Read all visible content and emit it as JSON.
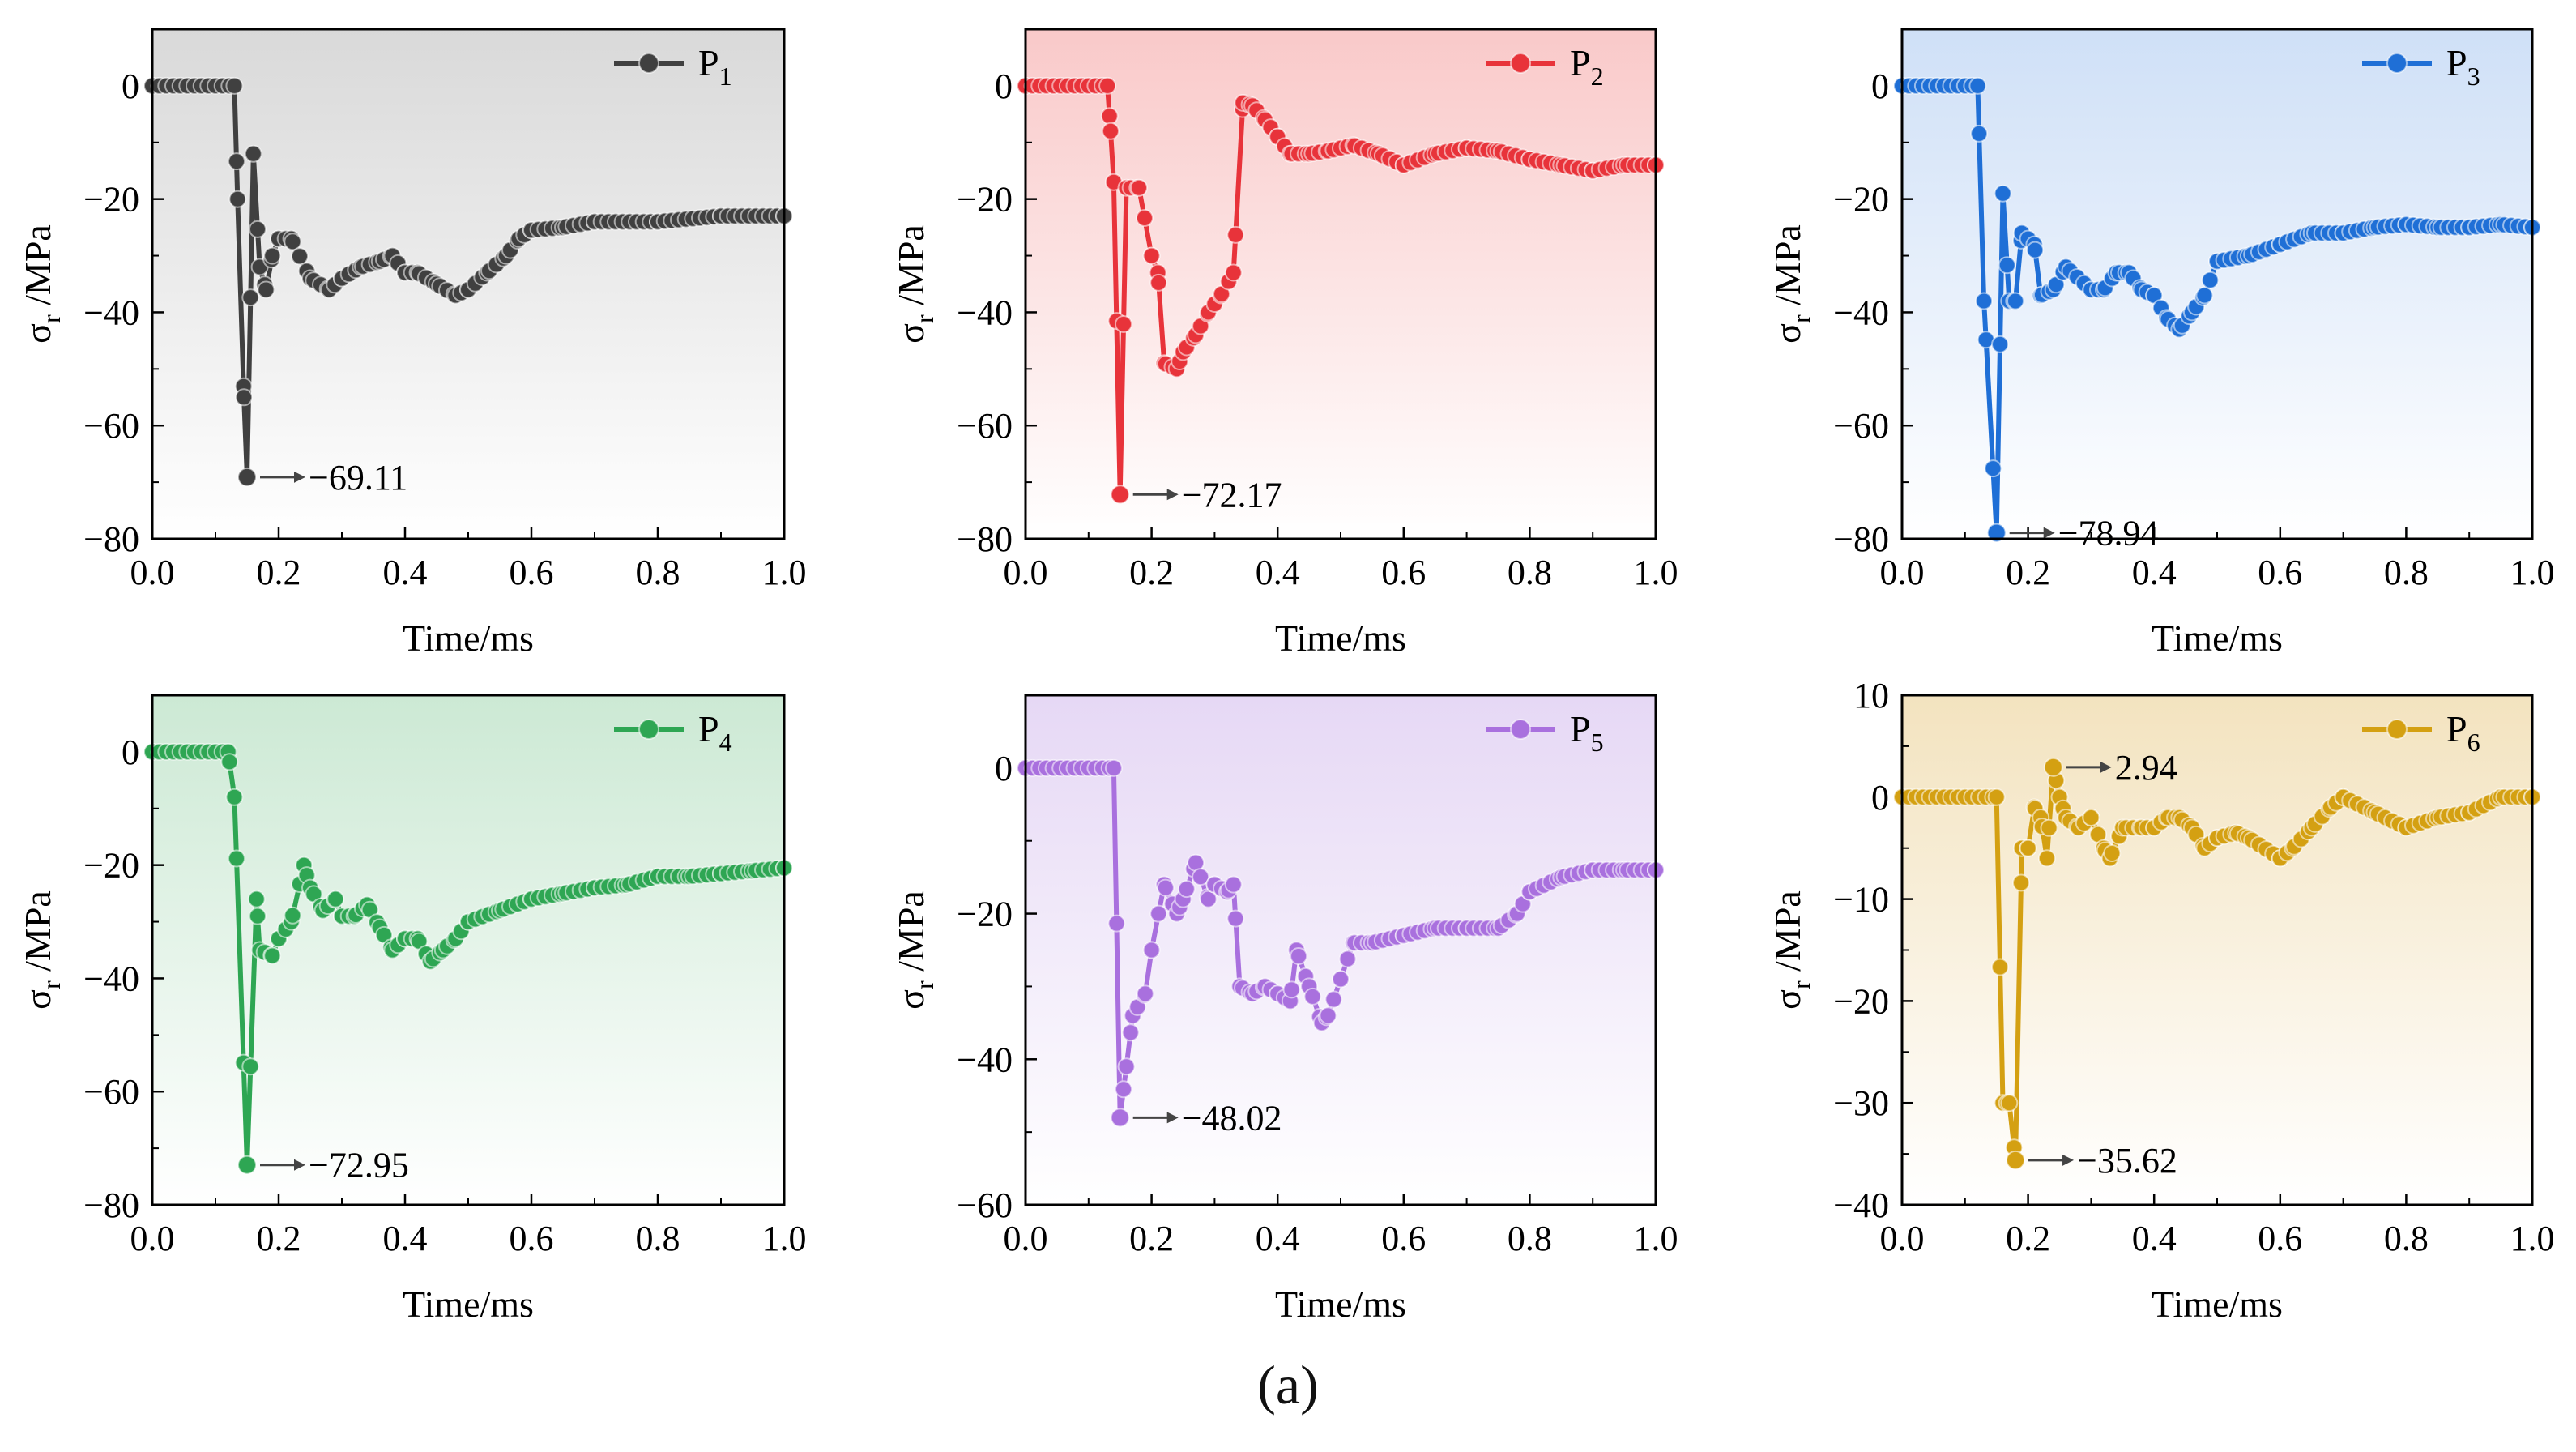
{
  "caption": "(a)",
  "chart_data": [
    {
      "type": "line",
      "title": "",
      "legend": "P",
      "legend_sub": "1",
      "legend_position": "top-right",
      "color": "#404040",
      "bg_color": "#d9d9d9",
      "xlabel": "Time/ms",
      "ylabel_main": "σ",
      "ylabel_sub": "r",
      "ylabel_unit": " /MPa",
      "xlim": [
        0,
        1.0
      ],
      "ylim": [
        -80,
        10
      ],
      "xticks": [
        0.0,
        0.2,
        0.4,
        0.6,
        0.8,
        1.0
      ],
      "xtick_labels": [
        "0.0",
        "0.2",
        "0.4",
        "0.6",
        "0.8",
        "1.0"
      ],
      "yticks": [
        0,
        -20,
        -40,
        -60,
        -80
      ],
      "ytick_labels": [
        "0",
        "−20",
        "−40",
        "−60",
        "−80"
      ],
      "annotations": [
        {
          "x": 0.15,
          "y": -69.11,
          "text": "−69.11"
        }
      ],
      "keypoints": [
        [
          0,
          0
        ],
        [
          0.13,
          0
        ],
        [
          0.135,
          -20
        ],
        [
          0.145,
          -55
        ],
        [
          0.15,
          -69.11
        ],
        [
          0.16,
          -12
        ],
        [
          0.17,
          -32
        ],
        [
          0.18,
          -36
        ],
        [
          0.19,
          -30
        ],
        [
          0.2,
          -27
        ],
        [
          0.22,
          -27
        ],
        [
          0.25,
          -34
        ],
        [
          0.28,
          -36
        ],
        [
          0.3,
          -34
        ],
        [
          0.33,
          -32
        ],
        [
          0.36,
          -31
        ],
        [
          0.38,
          -30
        ],
        [
          0.4,
          -33
        ],
        [
          0.42,
          -33
        ],
        [
          0.45,
          -35
        ],
        [
          0.48,
          -37
        ],
        [
          0.5,
          -36
        ],
        [
          0.53,
          -33
        ],
        [
          0.56,
          -30
        ],
        [
          0.58,
          -27
        ],
        [
          0.6,
          -25.5
        ],
        [
          0.65,
          -25
        ],
        [
          0.7,
          -24
        ],
        [
          0.8,
          -24
        ],
        [
          0.9,
          -23
        ],
        [
          1.0,
          -23
        ]
      ]
    },
    {
      "type": "line",
      "title": "",
      "legend": "P",
      "legend_sub": "2",
      "legend_position": "top-right",
      "color": "#e8333a",
      "bg_color": "#f9c9c9",
      "xlabel": "Time/ms",
      "ylabel_main": "σ",
      "ylabel_sub": "r",
      "ylabel_unit": " /MPa",
      "xlim": [
        0,
        1.0
      ],
      "ylim": [
        -80,
        10
      ],
      "xticks": [
        0.0,
        0.2,
        0.4,
        0.6,
        0.8,
        1.0
      ],
      "xtick_labels": [
        "0.0",
        "0.2",
        "0.4",
        "0.6",
        "0.8",
        "1.0"
      ],
      "yticks": [
        0,
        -20,
        -40,
        -60,
        -80
      ],
      "ytick_labels": [
        "0",
        "−20",
        "−40",
        "−60",
        "−80"
      ],
      "annotations": [
        {
          "x": 0.15,
          "y": -72.17,
          "text": "−72.17"
        }
      ],
      "keypoints": [
        [
          0,
          0
        ],
        [
          0.13,
          0
        ],
        [
          0.135,
          -8
        ],
        [
          0.14,
          -17
        ],
        [
          0.15,
          -72.17
        ],
        [
          0.16,
          -18
        ],
        [
          0.18,
          -18
        ],
        [
          0.2,
          -30
        ],
        [
          0.21,
          -33
        ],
        [
          0.22,
          -49
        ],
        [
          0.24,
          -50
        ],
        [
          0.25,
          -47
        ],
        [
          0.27,
          -44
        ],
        [
          0.29,
          -40
        ],
        [
          0.31,
          -37
        ],
        [
          0.33,
          -33
        ],
        [
          0.345,
          -3
        ],
        [
          0.36,
          -3.5
        ],
        [
          0.38,
          -6
        ],
        [
          0.4,
          -9
        ],
        [
          0.42,
          -12
        ],
        [
          0.45,
          -12
        ],
        [
          0.48,
          -11.5
        ],
        [
          0.52,
          -10.5
        ],
        [
          0.56,
          -12
        ],
        [
          0.6,
          -14
        ],
        [
          0.65,
          -12
        ],
        [
          0.7,
          -11
        ],
        [
          0.75,
          -11.5
        ],
        [
          0.8,
          -13
        ],
        [
          0.85,
          -14
        ],
        [
          0.9,
          -15
        ],
        [
          0.95,
          -14
        ],
        [
          1.0,
          -14
        ]
      ]
    },
    {
      "type": "line",
      "title": "",
      "legend": "P",
      "legend_sub": "3",
      "legend_position": "top-right",
      "color": "#1f6fd6",
      "bg_color": "#cfe0f7",
      "xlabel": "Time/ms",
      "ylabel_main": "σ",
      "ylabel_sub": "r",
      "ylabel_unit": " /MPa",
      "xlim": [
        0,
        1.0
      ],
      "ylim": [
        -80,
        10
      ],
      "xticks": [
        0.0,
        0.2,
        0.4,
        0.6,
        0.8,
        1.0
      ],
      "xtick_labels": [
        "0.0",
        "0.2",
        "0.4",
        "0.6",
        "0.8",
        "1.0"
      ],
      "yticks": [
        0,
        -20,
        -40,
        -60,
        -80
      ],
      "ytick_labels": [
        "0",
        "−20",
        "−40",
        "−60",
        "−80"
      ],
      "annotations": [
        {
          "x": 0.15,
          "y": -78.94,
          "text": "−78.94"
        }
      ],
      "keypoints": [
        [
          0,
          0
        ],
        [
          0.12,
          0
        ],
        [
          0.13,
          -38
        ],
        [
          0.15,
          -78.94
        ],
        [
          0.16,
          -19
        ],
        [
          0.17,
          -38
        ],
        [
          0.18,
          -38
        ],
        [
          0.19,
          -26
        ],
        [
          0.21,
          -28
        ],
        [
          0.22,
          -37
        ],
        [
          0.24,
          -36
        ],
        [
          0.26,
          -32
        ],
        [
          0.3,
          -36
        ],
        [
          0.32,
          -36
        ],
        [
          0.34,
          -33
        ],
        [
          0.36,
          -33
        ],
        [
          0.38,
          -36
        ],
        [
          0.4,
          -37
        ],
        [
          0.42,
          -41
        ],
        [
          0.44,
          -43
        ],
        [
          0.46,
          -40
        ],
        [
          0.48,
          -37
        ],
        [
          0.5,
          -31
        ],
        [
          0.55,
          -30
        ],
        [
          0.6,
          -28
        ],
        [
          0.65,
          -26
        ],
        [
          0.7,
          -26
        ],
        [
          0.75,
          -25
        ],
        [
          0.8,
          -24.5
        ],
        [
          0.85,
          -25
        ],
        [
          0.9,
          -25
        ],
        [
          0.95,
          -24.5
        ],
        [
          1.0,
          -25
        ]
      ]
    },
    {
      "type": "line",
      "title": "",
      "legend": "P",
      "legend_sub": "4",
      "legend_position": "top-right",
      "color": "#2ea653",
      "bg_color": "#cce9d4",
      "xlabel": "Time/ms",
      "ylabel_main": "σ",
      "ylabel_sub": "r",
      "ylabel_unit": " /MPa",
      "xlim": [
        0,
        1.0
      ],
      "ylim": [
        -80,
        10
      ],
      "xticks": [
        0.0,
        0.2,
        0.4,
        0.6,
        0.8,
        1.0
      ],
      "xtick_labels": [
        "0.0",
        "0.2",
        "0.4",
        "0.6",
        "0.8",
        "1.0"
      ],
      "yticks": [
        0,
        -20,
        -40,
        -60,
        -80
      ],
      "ytick_labels": [
        "0",
        "−20",
        "−40",
        "−60",
        "−80"
      ],
      "annotations": [
        {
          "x": 0.15,
          "y": -72.95,
          "text": "−72.95"
        }
      ],
      "keypoints": [
        [
          0,
          0
        ],
        [
          0.12,
          0
        ],
        [
          0.13,
          -8
        ],
        [
          0.15,
          -72.95
        ],
        [
          0.165,
          -26
        ],
        [
          0.17,
          -35
        ],
        [
          0.19,
          -36
        ],
        [
          0.2,
          -33
        ],
        [
          0.22,
          -30
        ],
        [
          0.24,
          -20
        ],
        [
          0.25,
          -24
        ],
        [
          0.27,
          -28
        ],
        [
          0.29,
          -26
        ],
        [
          0.3,
          -29
        ],
        [
          0.32,
          -29
        ],
        [
          0.34,
          -27
        ],
        [
          0.36,
          -31
        ],
        [
          0.38,
          -35
        ],
        [
          0.4,
          -33
        ],
        [
          0.42,
          -33
        ],
        [
          0.44,
          -37
        ],
        [
          0.46,
          -35
        ],
        [
          0.48,
          -33
        ],
        [
          0.5,
          -30
        ],
        [
          0.55,
          -28
        ],
        [
          0.6,
          -26
        ],
        [
          0.65,
          -25
        ],
        [
          0.7,
          -24
        ],
        [
          0.75,
          -23.5
        ],
        [
          0.8,
          -22
        ],
        [
          0.85,
          -22
        ],
        [
          0.9,
          -21.5
        ],
        [
          0.95,
          -21
        ],
        [
          1.0,
          -20.5
        ]
      ]
    },
    {
      "type": "line",
      "title": "",
      "legend": "P",
      "legend_sub": "5",
      "legend_position": "top-right",
      "color": "#a970de",
      "bg_color": "#e6d8f5",
      "xlabel": "Time/ms",
      "ylabel_main": "σ",
      "ylabel_sub": "r",
      "ylabel_unit": " /MPa",
      "xlim": [
        0,
        1.0
      ],
      "ylim": [
        -60,
        10
      ],
      "xticks": [
        0.0,
        0.2,
        0.4,
        0.6,
        0.8,
        1.0
      ],
      "xtick_labels": [
        "0.0",
        "0.2",
        "0.4",
        "0.6",
        "0.8",
        "1.0"
      ],
      "yticks": [
        0,
        -20,
        -40,
        -60
      ],
      "ytick_labels": [
        "0",
        "−20",
        "−40",
        "−60"
      ],
      "annotations": [
        {
          "x": 0.15,
          "y": -48.02,
          "text": "−48.02"
        }
      ],
      "keypoints": [
        [
          0,
          0
        ],
        [
          0.14,
          0
        ],
        [
          0.15,
          -48.02
        ],
        [
          0.16,
          -41
        ],
        [
          0.17,
          -34
        ],
        [
          0.19,
          -31
        ],
        [
          0.2,
          -25
        ],
        [
          0.22,
          -16
        ],
        [
          0.24,
          -20
        ],
        [
          0.25,
          -18
        ],
        [
          0.27,
          -13
        ],
        [
          0.29,
          -18
        ],
        [
          0.3,
          -16
        ],
        [
          0.32,
          -17
        ],
        [
          0.33,
          -16
        ],
        [
          0.34,
          -30
        ],
        [
          0.36,
          -31
        ],
        [
          0.38,
          -30
        ],
        [
          0.4,
          -31
        ],
        [
          0.42,
          -32
        ],
        [
          0.43,
          -25
        ],
        [
          0.45,
          -30
        ],
        [
          0.47,
          -35
        ],
        [
          0.48,
          -34
        ],
        [
          0.5,
          -29
        ],
        [
          0.52,
          -24
        ],
        [
          0.55,
          -24
        ],
        [
          0.6,
          -23
        ],
        [
          0.65,
          -22
        ],
        [
          0.7,
          -22
        ],
        [
          0.75,
          -22
        ],
        [
          0.78,
          -20
        ],
        [
          0.8,
          -17
        ],
        [
          0.85,
          -15
        ],
        [
          0.9,
          -14
        ],
        [
          0.95,
          -14
        ],
        [
          1.0,
          -14
        ]
      ]
    },
    {
      "type": "line",
      "title": "",
      "legend": "P",
      "legend_sub": "6",
      "legend_position": "top-right",
      "color": "#d4a012",
      "bg_color": "#f3e3bf",
      "xlabel": "Time/ms",
      "ylabel_main": "σ",
      "ylabel_sub": "r",
      "ylabel_unit": " /MPa",
      "xlim": [
        0,
        1.0
      ],
      "ylim": [
        -40,
        10
      ],
      "xticks": [
        0.0,
        0.2,
        0.4,
        0.6,
        0.8,
        1.0
      ],
      "xtick_labels": [
        "0.0",
        "0.2",
        "0.4",
        "0.6",
        "0.8",
        "1.0"
      ],
      "yticks": [
        10,
        0,
        -10,
        -20,
        -30,
        -40
      ],
      "ytick_labels": [
        "10",
        "0",
        "−10",
        "−20",
        "−30",
        "−40"
      ],
      "annotations": [
        {
          "x": 0.18,
          "y": -35.62,
          "text": "−35.62"
        },
        {
          "x": 0.24,
          "y": 2.94,
          "text": "2.94"
        }
      ],
      "keypoints": [
        [
          0,
          0
        ],
        [
          0.15,
          0
        ],
        [
          0.16,
          -30
        ],
        [
          0.17,
          -30
        ],
        [
          0.18,
          -35.62
        ],
        [
          0.19,
          -5
        ],
        [
          0.2,
          -5
        ],
        [
          0.21,
          -1
        ],
        [
          0.22,
          -2
        ],
        [
          0.23,
          -6
        ],
        [
          0.24,
          2.94
        ],
        [
          0.25,
          0
        ],
        [
          0.26,
          -2
        ],
        [
          0.28,
          -3
        ],
        [
          0.3,
          -2
        ],
        [
          0.32,
          -5
        ],
        [
          0.33,
          -6
        ],
        [
          0.35,
          -3
        ],
        [
          0.38,
          -3
        ],
        [
          0.4,
          -3
        ],
        [
          0.42,
          -2
        ],
        [
          0.44,
          -2
        ],
        [
          0.46,
          -3
        ],
        [
          0.48,
          -5
        ],
        [
          0.5,
          -4
        ],
        [
          0.53,
          -3.5
        ],
        [
          0.55,
          -4
        ],
        [
          0.6,
          -6
        ],
        [
          0.62,
          -5
        ],
        [
          0.65,
          -3
        ],
        [
          0.68,
          -1
        ],
        [
          0.7,
          0
        ],
        [
          0.75,
          -1.5
        ],
        [
          0.8,
          -3
        ],
        [
          0.85,
          -2
        ],
        [
          0.9,
          -1.5
        ],
        [
          0.95,
          0
        ],
        [
          1.0,
          0
        ]
      ]
    }
  ]
}
